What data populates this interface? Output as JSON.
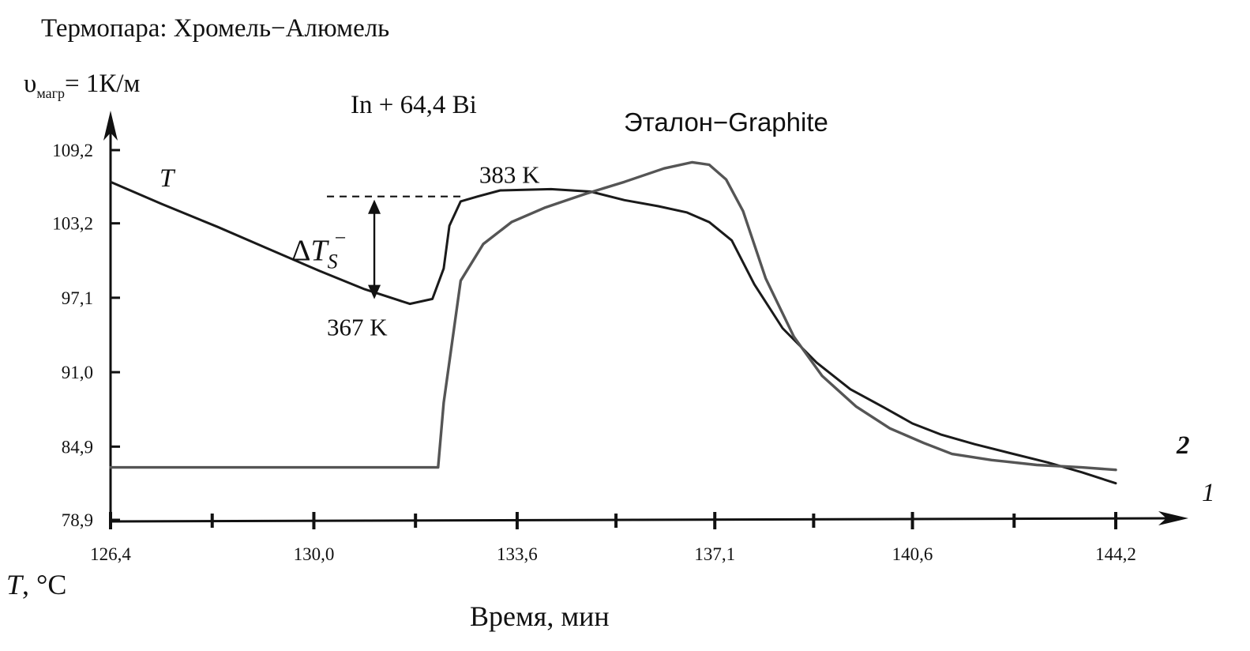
{
  "header": {
    "thermocouple": "Термопара: Хромель−Алюмель",
    "rate_symbol": "υ",
    "rate_sub": "магр",
    "rate_value": "= 1К/м"
  },
  "chart_data": {
    "type": "line",
    "title": "",
    "sample_label": "In + 64,4 Bi",
    "reference_label": "Эталон−Graphite",
    "xlabel": "Время, мин",
    "ylabel_italic": "T",
    "ylabel_rest": ", °C",
    "x_tick_labels": [
      "126,4",
      "130,0",
      "133,6",
      "137,1",
      "140,6",
      "144,2"
    ],
    "x_tick_values": [
      126.4,
      130.0,
      133.6,
      137.1,
      140.6,
      144.2
    ],
    "y_tick_labels": [
      "78,9",
      "84,9",
      "91,0",
      "97,1",
      "103,2",
      "109,2"
    ],
    "y_tick_values": [
      78.9,
      84.9,
      91.0,
      97.1,
      103.2,
      109.2
    ],
    "xlim": [
      126.4,
      144.2
    ],
    "ylim": [
      78.9,
      109.2
    ],
    "annotations": {
      "low_point": "367 K",
      "high_point": "383 K",
      "delta_symbol": "Δ",
      "delta_T": "T",
      "delta_sub": "S",
      "delta_sup": "−",
      "curve_T": "T",
      "curve_1": "1",
      "curve_2": "2"
    },
    "series": [
      {
        "id": "T",
        "x": [
          126.4,
          127.3,
          128.3,
          129.2,
          130.1,
          130.9,
          131.7,
          132.1,
          132.3,
          132.4,
          132.6,
          132.9,
          133.3,
          134.2,
          134.9,
          135.5,
          136.1,
          136.6,
          137.0,
          137.4,
          137.8,
          138.3,
          138.9,
          139.5,
          140.1,
          140.6,
          141.1,
          141.7,
          142.3,
          143.0,
          143.6,
          144.2
        ],
        "y": [
          106.6,
          104.8,
          102.9,
          101.1,
          99.3,
          97.8,
          96.6,
          97.0,
          99.5,
          103.0,
          105.0,
          105.4,
          105.9,
          106.0,
          105.8,
          105.1,
          104.6,
          104.1,
          103.3,
          101.8,
          98.2,
          94.6,
          91.8,
          89.6,
          88.1,
          86.8,
          85.9,
          85.1,
          84.4,
          83.6,
          82.8,
          81.9
        ]
      },
      {
        "id": "2",
        "x": [
          126.4,
          128.0,
          130.0,
          132.2,
          132.3,
          132.6,
          133.0,
          133.5,
          134.1,
          134.8,
          135.5,
          136.2,
          136.7,
          137.0,
          137.3,
          137.6,
          138.0,
          138.5,
          139.0,
          139.6,
          140.2,
          140.8,
          141.3,
          142.0,
          142.8,
          143.6,
          144.2
        ],
        "y": [
          83.2,
          83.2,
          83.2,
          83.2,
          88.5,
          98.5,
          101.5,
          103.3,
          104.5,
          105.6,
          106.6,
          107.7,
          108.2,
          108.0,
          106.8,
          104.2,
          98.7,
          93.9,
          90.7,
          88.2,
          86.4,
          85.2,
          84.3,
          83.8,
          83.4,
          83.2,
          83.0
        ]
      }
    ]
  }
}
